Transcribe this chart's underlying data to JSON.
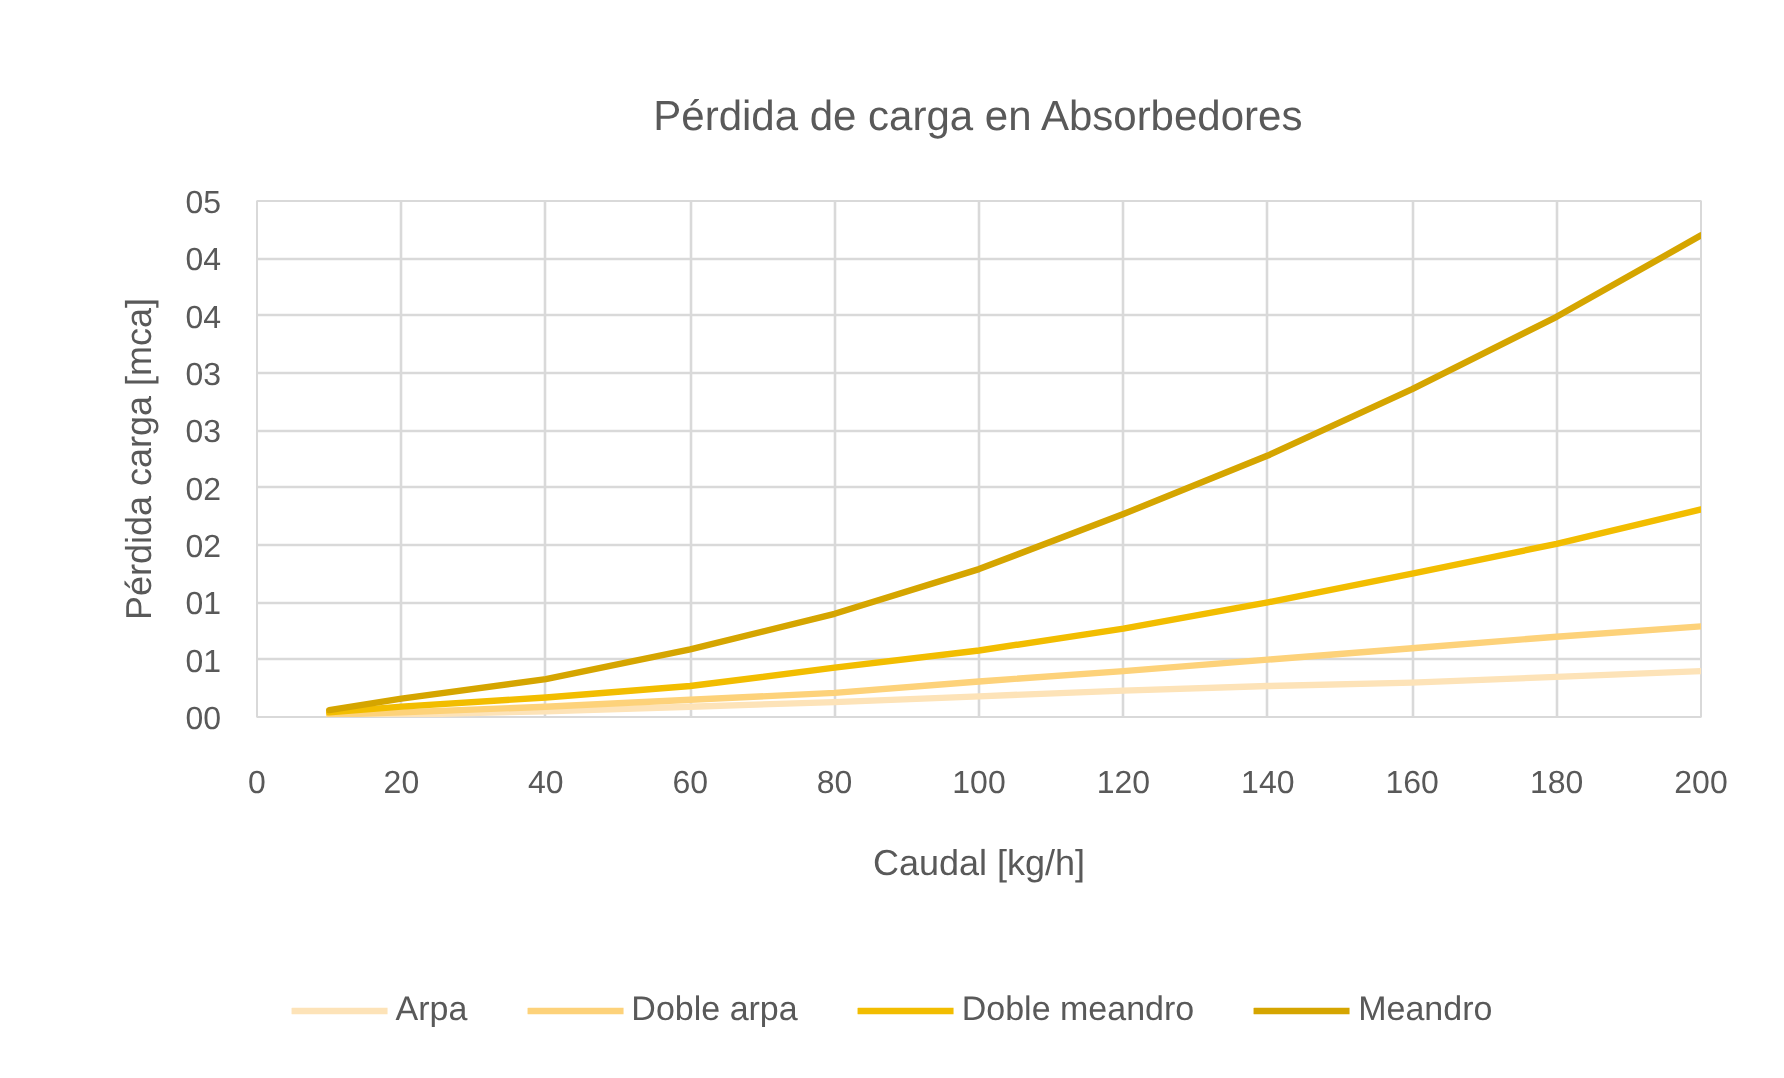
{
  "chart_data": {
    "type": "line",
    "title": "Pérdida de carga en Absorbedores",
    "xlabel": "Caudal [kg/h]",
    "ylabel": "Pérdida carga [mca]",
    "x": [
      10,
      20,
      40,
      60,
      80,
      100,
      120,
      140,
      160,
      180,
      200
    ],
    "series": [
      {
        "name": "Arpa",
        "color": "#fde3b8",
        "values": [
          0.01,
          0.02,
          0.05,
          0.09,
          0.13,
          0.18,
          0.23,
          0.27,
          0.3,
          0.35,
          0.4
        ]
      },
      {
        "name": "Doble arpa",
        "color": "#fdd27a",
        "values": [
          0.02,
          0.04,
          0.09,
          0.15,
          0.21,
          0.31,
          0.4,
          0.5,
          0.6,
          0.7,
          0.79
        ]
      },
      {
        "name": "Doble meandro",
        "color": "#f2bd00",
        "values": [
          0.04,
          0.09,
          0.17,
          0.27,
          0.43,
          0.58,
          0.77,
          1.0,
          1.25,
          1.51,
          1.81
        ]
      },
      {
        "name": "Meandro",
        "color": "#d5a500",
        "values": [
          0.06,
          0.16,
          0.33,
          0.59,
          0.9,
          1.29,
          1.77,
          2.28,
          2.86,
          3.49,
          4.2
        ]
      }
    ],
    "xlim": [
      0,
      200
    ],
    "xticks": [
      0,
      20,
      40,
      60,
      80,
      100,
      120,
      140,
      160,
      180,
      200
    ],
    "ylim": [
      0,
      4.5
    ],
    "yticks": [
      {
        "value": 0,
        "label": "00"
      },
      {
        "value": 0.5,
        "label": "01"
      },
      {
        "value": 1,
        "label": "01"
      },
      {
        "value": 1.5,
        "label": "02"
      },
      {
        "value": 2,
        "label": "02"
      },
      {
        "value": 2.5,
        "label": "03"
      },
      {
        "value": 3,
        "label": "03"
      },
      {
        "value": 3.5,
        "label": "04"
      },
      {
        "value": 4,
        "label": "04"
      },
      {
        "value": 4.5,
        "label": "05"
      }
    ],
    "grid": true,
    "legend": "bottom",
    "line_style": "solid"
  }
}
